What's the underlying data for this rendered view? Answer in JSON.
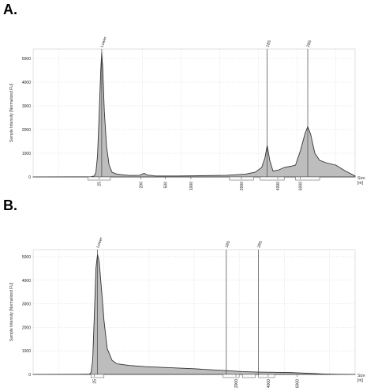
{
  "chart_data": [
    {
      "panel_label": "A.",
      "type": "area",
      "ylabel": "Sample Intensity [Normalized FU]",
      "xlabel": "Size\n[nt]",
      "y_ticks": [
        0,
        1000,
        2000,
        3000,
        4000,
        5000
      ],
      "ylim": [
        0,
        5400
      ],
      "x_ticks": [
        "25",
        "200",
        "500",
        "1000",
        "2000",
        "4000",
        "6000"
      ],
      "peak_labels": [
        "Lower",
        "18S",
        "28S"
      ],
      "grid": true,
      "fill_color": "#bdbdbd",
      "line_color": "#333333",
      "profile": [
        [
          0.0,
          2
        ],
        [
          0.12,
          5
        ],
        [
          0.18,
          10
        ],
        [
          0.19,
          40
        ],
        [
          0.195,
          200
        ],
        [
          0.2,
          900
        ],
        [
          0.205,
          2600
        ],
        [
          0.21,
          4500
        ],
        [
          0.213,
          5250
        ],
        [
          0.216,
          4600
        ],
        [
          0.221,
          2800
        ],
        [
          0.228,
          1300
        ],
        [
          0.236,
          500
        ],
        [
          0.245,
          200
        ],
        [
          0.26,
          120
        ],
        [
          0.3,
          60
        ],
        [
          0.33,
          70
        ],
        [
          0.345,
          150
        ],
        [
          0.355,
          80
        ],
        [
          0.38,
          40
        ],
        [
          0.45,
          40
        ],
        [
          0.52,
          50
        ],
        [
          0.6,
          70
        ],
        [
          0.66,
          120
        ],
        [
          0.69,
          200
        ],
        [
          0.71,
          400
        ],
        [
          0.72,
          800
        ],
        [
          0.727,
          1330
        ],
        [
          0.735,
          700
        ],
        [
          0.745,
          250
        ],
        [
          0.76,
          280
        ],
        [
          0.78,
          400
        ],
        [
          0.8,
          450
        ],
        [
          0.815,
          500
        ],
        [
          0.83,
          1100
        ],
        [
          0.845,
          1850
        ],
        [
          0.853,
          2120
        ],
        [
          0.862,
          1800
        ],
        [
          0.875,
          1000
        ],
        [
          0.89,
          700
        ],
        [
          0.91,
          600
        ],
        [
          0.94,
          500
        ],
        [
          0.97,
          250
        ],
        [
          1.0,
          40
        ]
      ]
    },
    {
      "panel_label": "B.",
      "type": "area",
      "ylabel": "Sample Intensity [Normalized FU]",
      "xlabel": "Size\n[nt]",
      "y_ticks": [
        0,
        1000,
        2000,
        3000,
        4000,
        5000
      ],
      "ylim": [
        0,
        5300
      ],
      "x_ticks": [
        "25",
        "2000",
        "4000",
        "6000"
      ],
      "peak_labels": [
        "Lower",
        "18S",
        "28S"
      ],
      "grid": true,
      "fill_color": "#bdbdbd",
      "line_color": "#333333",
      "profile": [
        [
          0.0,
          2
        ],
        [
          0.14,
          5
        ],
        [
          0.175,
          15
        ],
        [
          0.18,
          80
        ],
        [
          0.185,
          600
        ],
        [
          0.19,
          2500
        ],
        [
          0.195,
          4500
        ],
        [
          0.2,
          5100
        ],
        [
          0.205,
          4800
        ],
        [
          0.21,
          4000
        ],
        [
          0.22,
          2300
        ],
        [
          0.23,
          1100
        ],
        [
          0.245,
          600
        ],
        [
          0.26,
          450
        ],
        [
          0.3,
          380
        ],
        [
          0.35,
          330
        ],
        [
          0.4,
          300
        ],
        [
          0.45,
          270
        ],
        [
          0.5,
          240
        ],
        [
          0.55,
          200
        ],
        [
          0.6,
          160
        ],
        [
          0.65,
          120
        ],
        [
          0.7,
          100
        ],
        [
          0.75,
          90
        ],
        [
          0.8,
          80
        ],
        [
          0.85,
          50
        ],
        [
          0.9,
          20
        ],
        [
          0.95,
          5
        ],
        [
          1.0,
          2
        ]
      ]
    }
  ]
}
